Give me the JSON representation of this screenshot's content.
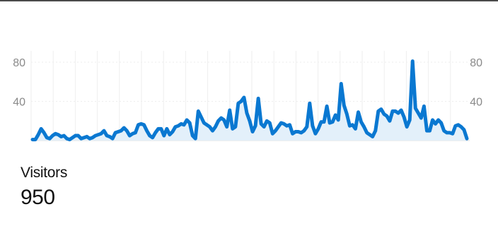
{
  "stat": {
    "label": "Visitors",
    "value": "950"
  },
  "colors": {
    "line": "#0a78d1",
    "area": "#e3f0fa",
    "grid": "#eeeeee",
    "baseline": "#dddddd",
    "tick_text": "#8a8a8a"
  },
  "chart_data": {
    "type": "area",
    "title": "",
    "xlabel": "",
    "ylabel": "",
    "ylim": [
      0,
      80
    ],
    "yticks_left": [
      "80",
      "40"
    ],
    "yticks_right": [
      "80",
      "40"
    ],
    "grid": true,
    "series": [
      {
        "values": [
          1,
          1,
          6,
          12,
          8,
          3,
          2,
          5,
          7,
          6,
          4,
          5,
          2,
          1,
          3,
          5,
          5,
          2,
          3,
          4,
          2,
          3,
          5,
          6,
          7,
          10,
          5,
          4,
          2,
          8,
          9,
          10,
          13,
          10,
          5,
          7,
          8,
          16,
          17,
          16,
          10,
          5,
          3,
          8,
          12,
          12,
          5,
          12,
          6,
          9,
          14,
          15,
          17,
          16,
          21,
          18,
          5,
          2,
          30,
          24,
          18,
          16,
          14,
          10,
          14,
          20,
          23,
          21,
          14,
          31,
          12,
          14,
          38,
          40,
          44,
          28,
          20,
          9,
          15,
          43,
          17,
          14,
          20,
          18,
          7,
          10,
          14,
          18,
          17,
          15,
          16,
          7,
          9,
          9,
          8,
          10,
          14,
          38,
          15,
          7,
          12,
          19,
          19,
          35,
          18,
          19,
          26,
          21,
          58,
          36,
          27,
          15,
          16,
          12,
          29,
          19,
          14,
          8,
          6,
          4,
          10,
          30,
          32,
          27,
          25,
          20,
          30,
          30,
          28,
          31,
          24,
          14,
          21,
          81,
          33,
          28,
          23,
          35,
          10,
          10,
          21,
          17,
          21,
          18,
          10,
          8,
          8,
          7,
          15,
          16,
          14,
          11,
          2
        ]
      }
    ]
  }
}
